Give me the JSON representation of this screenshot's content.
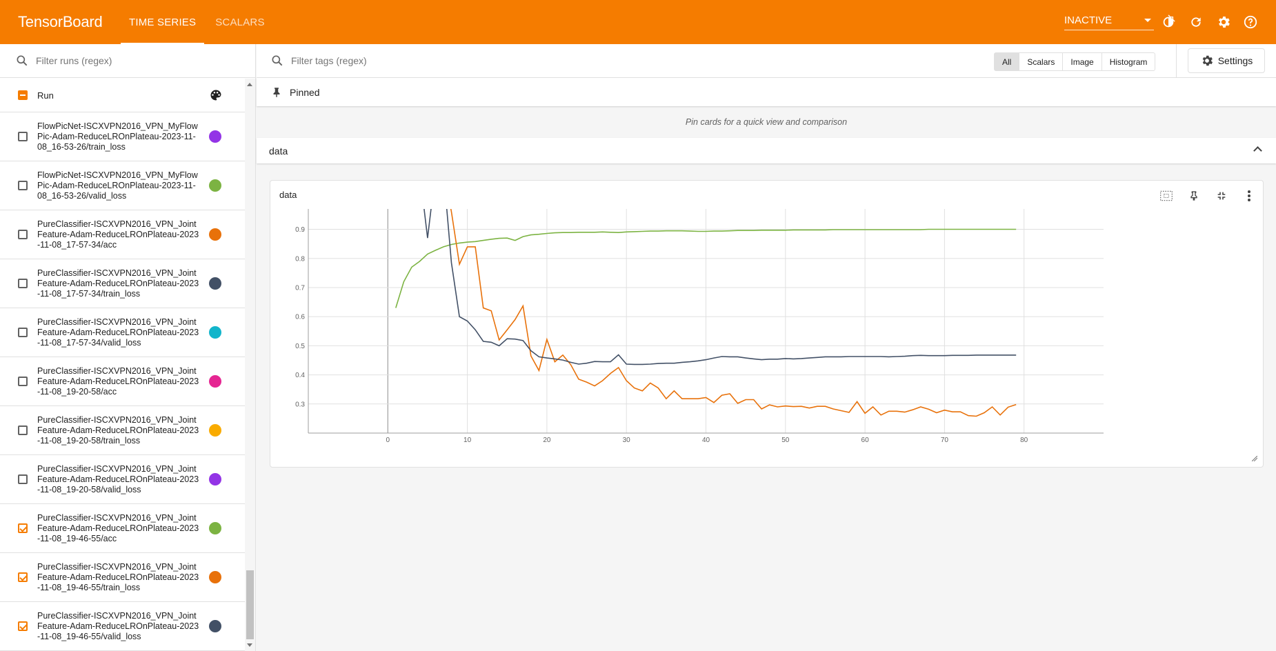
{
  "header": {
    "title": "TensorBoard",
    "tabs": [
      {
        "label": "TIME SERIES",
        "active": true
      },
      {
        "label": "SCALARS",
        "active": false
      }
    ],
    "status_select": "INACTIVE",
    "icons": [
      "theme-toggle-icon",
      "refresh-icon",
      "settings-icon",
      "help-icon"
    ]
  },
  "sidebar": {
    "filter_placeholder": "Filter runs (regex)",
    "header_label": "Run",
    "runs": [
      {
        "name": "FlowPicNet-ISCXVPN2016_VPN_MyFlowPic-Adam-ReduceLROnPlateau-2023-11-08_16-53-26/train_loss",
        "color": "#9334e6",
        "checked": false
      },
      {
        "name": "FlowPicNet-ISCXVPN2016_VPN_MyFlowPic-Adam-ReduceLROnPlateau-2023-11-08_16-53-26/valid_loss",
        "color": "#7cb342",
        "checked": false
      },
      {
        "name": "PureClassifier-ISCXVPN2016_VPN_JointFeature-Adam-ReduceLROnPlateau-2023-11-08_17-57-34/acc",
        "color": "#e8710a",
        "checked": false
      },
      {
        "name": "PureClassifier-ISCXVPN2016_VPN_JointFeature-Adam-ReduceLROnPlateau-2023-11-08_17-57-34/train_loss",
        "color": "#425066",
        "checked": false
      },
      {
        "name": "PureClassifier-ISCXVPN2016_VPN_JointFeature-Adam-ReduceLROnPlateau-2023-11-08_17-57-34/valid_loss",
        "color": "#12b5cb",
        "checked": false
      },
      {
        "name": "PureClassifier-ISCXVPN2016_VPN_JointFeature-Adam-ReduceLROnPlateau-2023-11-08_19-20-58/acc",
        "color": "#e52592",
        "checked": false
      },
      {
        "name": "PureClassifier-ISCXVPN2016_VPN_JointFeature-Adam-ReduceLROnPlateau-2023-11-08_19-20-58/train_loss",
        "color": "#f9ab00",
        "checked": false
      },
      {
        "name": "PureClassifier-ISCXVPN2016_VPN_JointFeature-Adam-ReduceLROnPlateau-2023-11-08_19-20-58/valid_loss",
        "color": "#9334e6",
        "checked": false
      },
      {
        "name": "PureClassifier-ISCXVPN2016_VPN_JointFeature-Adam-ReduceLROnPlateau-2023-11-08_19-46-55/acc",
        "color": "#7cb342",
        "checked": true
      },
      {
        "name": "PureClassifier-ISCXVPN2016_VPN_JointFeature-Adam-ReduceLROnPlateau-2023-11-08_19-46-55/train_loss",
        "color": "#e8710a",
        "checked": true
      },
      {
        "name": "PureClassifier-ISCXVPN2016_VPN_JointFeature-Adam-ReduceLROnPlateau-2023-11-08_19-46-55/valid_loss",
        "color": "#425066",
        "checked": true
      }
    ]
  },
  "main": {
    "tag_filter_placeholder": "Filter tags (regex)",
    "type_filters": [
      {
        "label": "All",
        "active": true
      },
      {
        "label": "Scalars",
        "active": false
      },
      {
        "label": "Image",
        "active": false
      },
      {
        "label": "Histogram",
        "active": false
      }
    ],
    "settings_label": "Settings",
    "pinned_label": "Pinned",
    "pinned_note": "Pin cards for a quick view and comparison",
    "group_label": "data",
    "card_title": "data"
  },
  "chart_data": {
    "type": "line",
    "title": "data",
    "xlabel": "",
    "ylabel": "",
    "xlim": [
      -10,
      90
    ],
    "ylim": [
      0.2,
      0.97
    ],
    "x_ticks": [
      0,
      10,
      20,
      30,
      40,
      50,
      60,
      70,
      80
    ],
    "y_ticks": [
      0.3,
      0.4,
      0.5,
      0.6,
      0.7,
      0.8,
      0.9
    ],
    "grid": true,
    "series": [
      {
        "color": "#7cb342",
        "x": [
          1,
          2,
          3,
          4,
          5,
          6,
          7,
          8,
          9,
          10,
          11,
          12,
          13,
          14,
          15,
          16,
          17,
          18,
          19,
          20,
          21,
          22,
          23,
          24,
          25,
          26,
          27,
          28,
          29,
          30,
          31,
          32,
          33,
          34,
          35,
          36,
          37,
          38,
          39,
          40,
          41,
          42,
          43,
          44,
          45,
          46,
          47,
          48,
          49,
          50,
          51,
          52,
          53,
          54,
          55,
          56,
          57,
          58,
          59,
          60,
          61,
          62,
          63,
          64,
          65,
          66,
          67,
          68,
          69,
          70,
          71,
          72,
          73,
          74,
          75,
          76,
          77,
          78,
          79
        ],
        "y": [
          0.63,
          0.72,
          0.77,
          0.79,
          0.815,
          0.828,
          0.84,
          0.848,
          0.853,
          0.856,
          0.858,
          0.862,
          0.866,
          0.869,
          0.87,
          0.862,
          0.875,
          0.881,
          0.883,
          0.886,
          0.888,
          0.889,
          0.889,
          0.89,
          0.89,
          0.89,
          0.891,
          0.89,
          0.889,
          0.891,
          0.892,
          0.893,
          0.894,
          0.894,
          0.895,
          0.895,
          0.895,
          0.894,
          0.893,
          0.893,
          0.894,
          0.894,
          0.895,
          0.896,
          0.896,
          0.896,
          0.897,
          0.897,
          0.897,
          0.897,
          0.898,
          0.898,
          0.898,
          0.898,
          0.898,
          0.899,
          0.899,
          0.899,
          0.899,
          0.899,
          0.899,
          0.899,
          0.899,
          0.899,
          0.899,
          0.899,
          0.899,
          0.9,
          0.9,
          0.9,
          0.9,
          0.9,
          0.9,
          0.9,
          0.9,
          0.9,
          0.9,
          0.9,
          0.9
        ]
      },
      {
        "color": "#e8710a",
        "x": [
          7,
          8,
          9,
          10,
          11,
          12,
          13,
          14,
          15,
          16,
          17,
          18,
          19,
          20,
          21,
          22,
          23,
          24,
          25,
          26,
          27,
          28,
          29,
          30,
          31,
          32,
          33,
          34,
          35,
          36,
          37,
          38,
          39,
          40,
          41,
          42,
          43,
          44,
          45,
          46,
          47,
          48,
          49,
          50,
          51,
          52,
          53,
          54,
          55,
          56,
          57,
          58,
          59,
          60,
          61,
          62,
          63,
          64,
          65,
          66,
          67,
          68,
          69,
          70,
          71,
          72,
          73,
          74,
          75,
          76,
          77,
          78,
          79
        ],
        "y": [
          1.1,
          0.96,
          0.78,
          0.84,
          0.84,
          0.63,
          0.62,
          0.52,
          0.555,
          0.59,
          0.637,
          0.465,
          0.415,
          0.522,
          0.445,
          0.468,
          0.435,
          0.385,
          0.375,
          0.362,
          0.38,
          0.405,
          0.425,
          0.38,
          0.355,
          0.345,
          0.372,
          0.355,
          0.318,
          0.345,
          0.318,
          0.318,
          0.318,
          0.322,
          0.305,
          0.33,
          0.335,
          0.302,
          0.315,
          0.315,
          0.283,
          0.297,
          0.29,
          0.293,
          0.291,
          0.292,
          0.286,
          0.292,
          0.292,
          0.283,
          0.277,
          0.271,
          0.308,
          0.268,
          0.29,
          0.262,
          0.275,
          0.275,
          0.272,
          0.28,
          0.29,
          0.282,
          0.27,
          0.279,
          0.273,
          0.273,
          0.26,
          0.258,
          0.27,
          0.29,
          0.262,
          0.289,
          0.298
        ]
      },
      {
        "color": "#425066",
        "x": [
          4,
          5,
          6,
          7,
          8,
          9,
          10,
          11,
          12,
          13,
          14,
          15,
          16,
          17,
          18,
          19,
          20,
          21,
          22,
          23,
          24,
          25,
          26,
          27,
          28,
          29,
          30,
          31,
          32,
          33,
          34,
          35,
          36,
          37,
          38,
          39,
          40,
          41,
          42,
          43,
          44,
          45,
          46,
          47,
          48,
          49,
          50,
          51,
          52,
          53,
          54,
          55,
          56,
          57,
          58,
          59,
          60,
          61,
          62,
          63,
          64,
          65,
          66,
          67,
          68,
          69,
          70,
          71,
          72,
          73,
          74,
          75,
          76,
          77,
          78,
          79
        ],
        "y": [
          1.1,
          0.87,
          1.1,
          1.1,
          0.785,
          0.6,
          0.585,
          0.555,
          0.515,
          0.512,
          0.5,
          0.524,
          0.523,
          0.518,
          0.483,
          0.462,
          0.458,
          0.455,
          0.451,
          0.443,
          0.437,
          0.44,
          0.446,
          0.445,
          0.445,
          0.469,
          0.437,
          0.436,
          0.436,
          0.437,
          0.439,
          0.44,
          0.44,
          0.443,
          0.445,
          0.448,
          0.452,
          0.458,
          0.463,
          0.462,
          0.462,
          0.458,
          0.455,
          0.452,
          0.454,
          0.454,
          0.456,
          0.455,
          0.456,
          0.458,
          0.46,
          0.462,
          0.462,
          0.462,
          0.463,
          0.463,
          0.463,
          0.463,
          0.463,
          0.462,
          0.463,
          0.464,
          0.466,
          0.467,
          0.466,
          0.466,
          0.466,
          0.467,
          0.467,
          0.467,
          0.468,
          0.468,
          0.468,
          0.468,
          0.468,
          0.468
        ]
      }
    ]
  }
}
